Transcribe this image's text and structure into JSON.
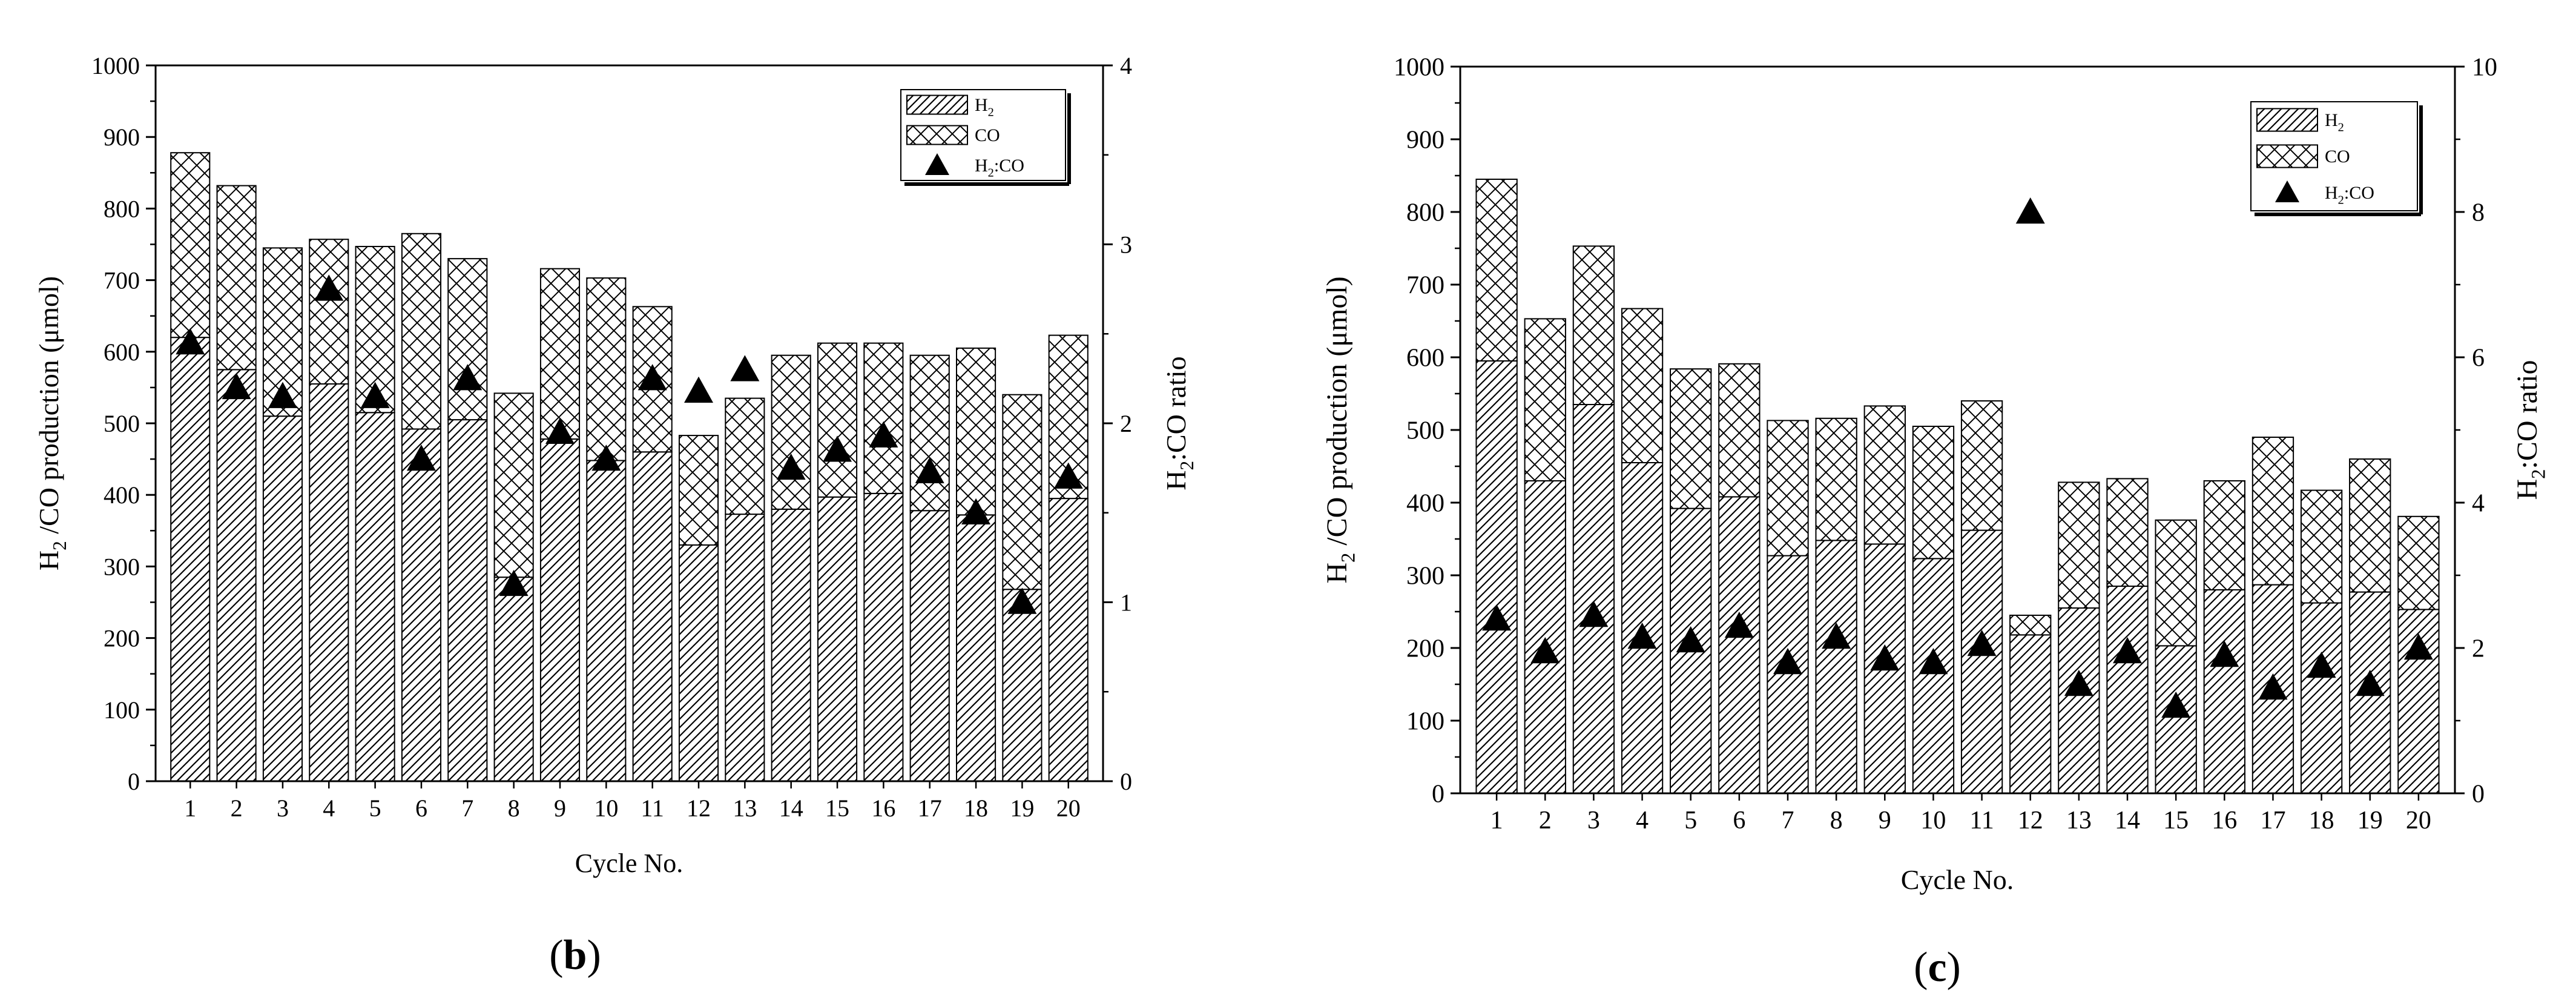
{
  "colors": {
    "ink": "#000000",
    "background": "#ffffff"
  },
  "chart_data": [
    {
      "panel": "(b)",
      "type": "bar",
      "stacked": true,
      "xlabel": "Cycle No.",
      "ylabel": "H2 /CO production (μmol)",
      "y2label": "H2:CO ratio",
      "ylim": [
        0,
        1000
      ],
      "y2lim": [
        0,
        4
      ],
      "categories": [
        "1",
        "2",
        "3",
        "4",
        "5",
        "6",
        "7",
        "8",
        "9",
        "10",
        "11",
        "12",
        "13",
        "14",
        "15",
        "16",
        "17",
        "18",
        "19",
        "20"
      ],
      "y_ticks": [
        "0",
        "100",
        "200",
        "300",
        "400",
        "500",
        "600",
        "700",
        "800",
        "900",
        "1000"
      ],
      "y2_ticks": [
        "0",
        "1",
        "2",
        "3",
        "4"
      ],
      "legend": {
        "position": "top-right",
        "entries": [
          "H2",
          "CO",
          "H2:CO"
        ]
      },
      "series": [
        {
          "name": "H2",
          "kind": "bar",
          "hatch": "diagonal",
          "values": [
            620,
            575,
            510,
            555,
            515,
            492,
            505,
            285,
            478,
            448,
            460,
            330,
            373,
            380,
            397,
            402,
            378,
            372,
            268,
            395
          ]
        },
        {
          "name": "CO",
          "kind": "bar",
          "hatch": "crosshatch",
          "values": [
            258,
            257,
            235,
            202,
            232,
            273,
            225,
            257,
            238,
            255,
            203,
            153,
            162,
            215,
            215,
            210,
            217,
            233,
            272,
            228
          ]
        },
        {
          "name": "H2:CO",
          "kind": "scatter",
          "axis": "y2",
          "marker": "triangle",
          "values": [
            2.45,
            2.2,
            2.15,
            2.75,
            2.15,
            1.8,
            2.25,
            1.1,
            1.95,
            1.8,
            2.25,
            2.18,
            2.3,
            1.75,
            1.85,
            1.93,
            1.73,
            1.5,
            1.0,
            1.7
          ]
        }
      ]
    },
    {
      "panel": "(c)",
      "type": "bar",
      "stacked": true,
      "xlabel": "Cycle No.",
      "ylabel": "H2 /CO production (μmol)",
      "y2label": "H2:CO ratio",
      "ylim": [
        0,
        1000
      ],
      "y2lim": [
        0,
        10
      ],
      "categories": [
        "1",
        "2",
        "3",
        "4",
        "5",
        "6",
        "7",
        "8",
        "9",
        "10",
        "11",
        "12",
        "13",
        "14",
        "15",
        "16",
        "17",
        "18",
        "19",
        "20"
      ],
      "y_ticks": [
        "0",
        "100",
        "200",
        "300",
        "400",
        "500",
        "600",
        "700",
        "800",
        "900",
        "1000"
      ],
      "y2_ticks": [
        "0",
        "2",
        "4",
        "6",
        "8",
        "10"
      ],
      "legend": {
        "position": "top-right",
        "entries": [
          "H2",
          "CO",
          "H2:CO"
        ]
      },
      "series": [
        {
          "name": "H2",
          "kind": "bar",
          "hatch": "diagonal",
          "values": [
            595,
            430,
            535,
            455,
            392,
            408,
            327,
            348,
            343,
            323,
            362,
            218,
            255,
            285,
            203,
            280,
            287,
            262,
            277,
            253
          ]
        },
        {
          "name": "CO",
          "kind": "bar",
          "hatch": "crosshatch",
          "values": [
            250,
            223,
            218,
            212,
            192,
            183,
            186,
            168,
            190,
            182,
            178,
            27,
            173,
            148,
            173,
            150,
            203,
            155,
            183,
            128
          ]
        },
        {
          "name": "H2:CO",
          "kind": "scatter",
          "axis": "y2",
          "marker": "triangle",
          "values": [
            2.4,
            1.95,
            2.45,
            2.15,
            2.1,
            2.3,
            1.8,
            2.15,
            1.85,
            1.8,
            2.05,
            8.0,
            1.5,
            1.95,
            1.2,
            1.9,
            1.45,
            1.75,
            1.5,
            2.0
          ]
        }
      ]
    }
  ]
}
